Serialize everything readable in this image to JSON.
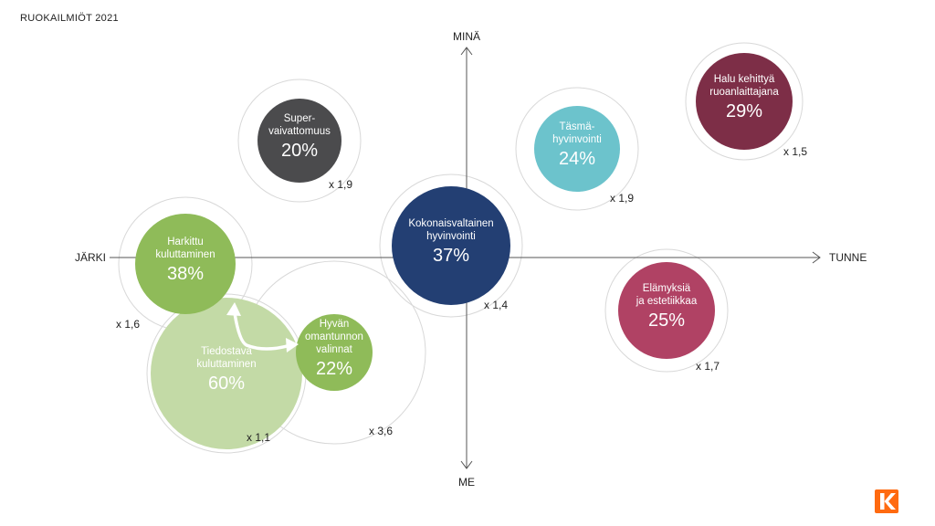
{
  "header": {
    "title": "RUOKAILMIÖT 2021"
  },
  "axes": {
    "top": "MINÄ",
    "bottom": "ME",
    "left": "JÄRKI",
    "right": "TUNNE"
  },
  "colors": {
    "axis": "#555555",
    "ring": "#d8d8d8",
    "arrow": "#ffffff",
    "logo": "#ff6a10"
  },
  "phenomena": [
    {
      "id": "tiedostava",
      "lines": [
        "Tiedostava",
        "kuluttaminen"
      ],
      "value": "60%",
      "multiplier": "x 1,1",
      "color": "#c3daa6",
      "text_color": "#ffffff"
    },
    {
      "id": "harkittu",
      "lines": [
        "Harkittu",
        "kuluttaminen"
      ],
      "value": "38%",
      "multiplier": "x 1,6",
      "color": "#8fbb59",
      "text_color": "#ffffff"
    },
    {
      "id": "hyvan",
      "lines": [
        "Hyvän",
        "omantunnon",
        "valinnat"
      ],
      "value": "22%",
      "multiplier": "x 3,6",
      "color": "#8fbb59",
      "text_color": "#ffffff"
    },
    {
      "id": "super",
      "lines": [
        "Super-",
        "vaivattomuus"
      ],
      "value": "20%",
      "multiplier": "x 1,9",
      "color": "#4b4b4d",
      "text_color": "#ffffff"
    },
    {
      "id": "kokonais",
      "lines": [
        "Kokonaisvaltainen",
        "hyvinvointi"
      ],
      "value": "37%",
      "multiplier": "x 1,4",
      "color": "#233f73",
      "text_color": "#ffffff"
    },
    {
      "id": "tasma",
      "lines": [
        "Täsmä-",
        "hyvinvointi"
      ],
      "value": "24%",
      "multiplier": "x 1,9",
      "color": "#6cc3cc",
      "text_color": "#ffffff"
    },
    {
      "id": "halu",
      "lines": [
        "Halu kehittyä",
        "ruoanlaittajana"
      ],
      "value": "29%",
      "multiplier": "x 1,5",
      "color": "#7d2e47",
      "text_color": "#ffffff"
    },
    {
      "id": "elamyksia",
      "lines": [
        "Elämyksiä",
        "ja estetiikkaa"
      ],
      "value": "25%",
      "multiplier": "x 1,7",
      "color": "#b04264",
      "text_color": "#ffffff"
    }
  ]
}
